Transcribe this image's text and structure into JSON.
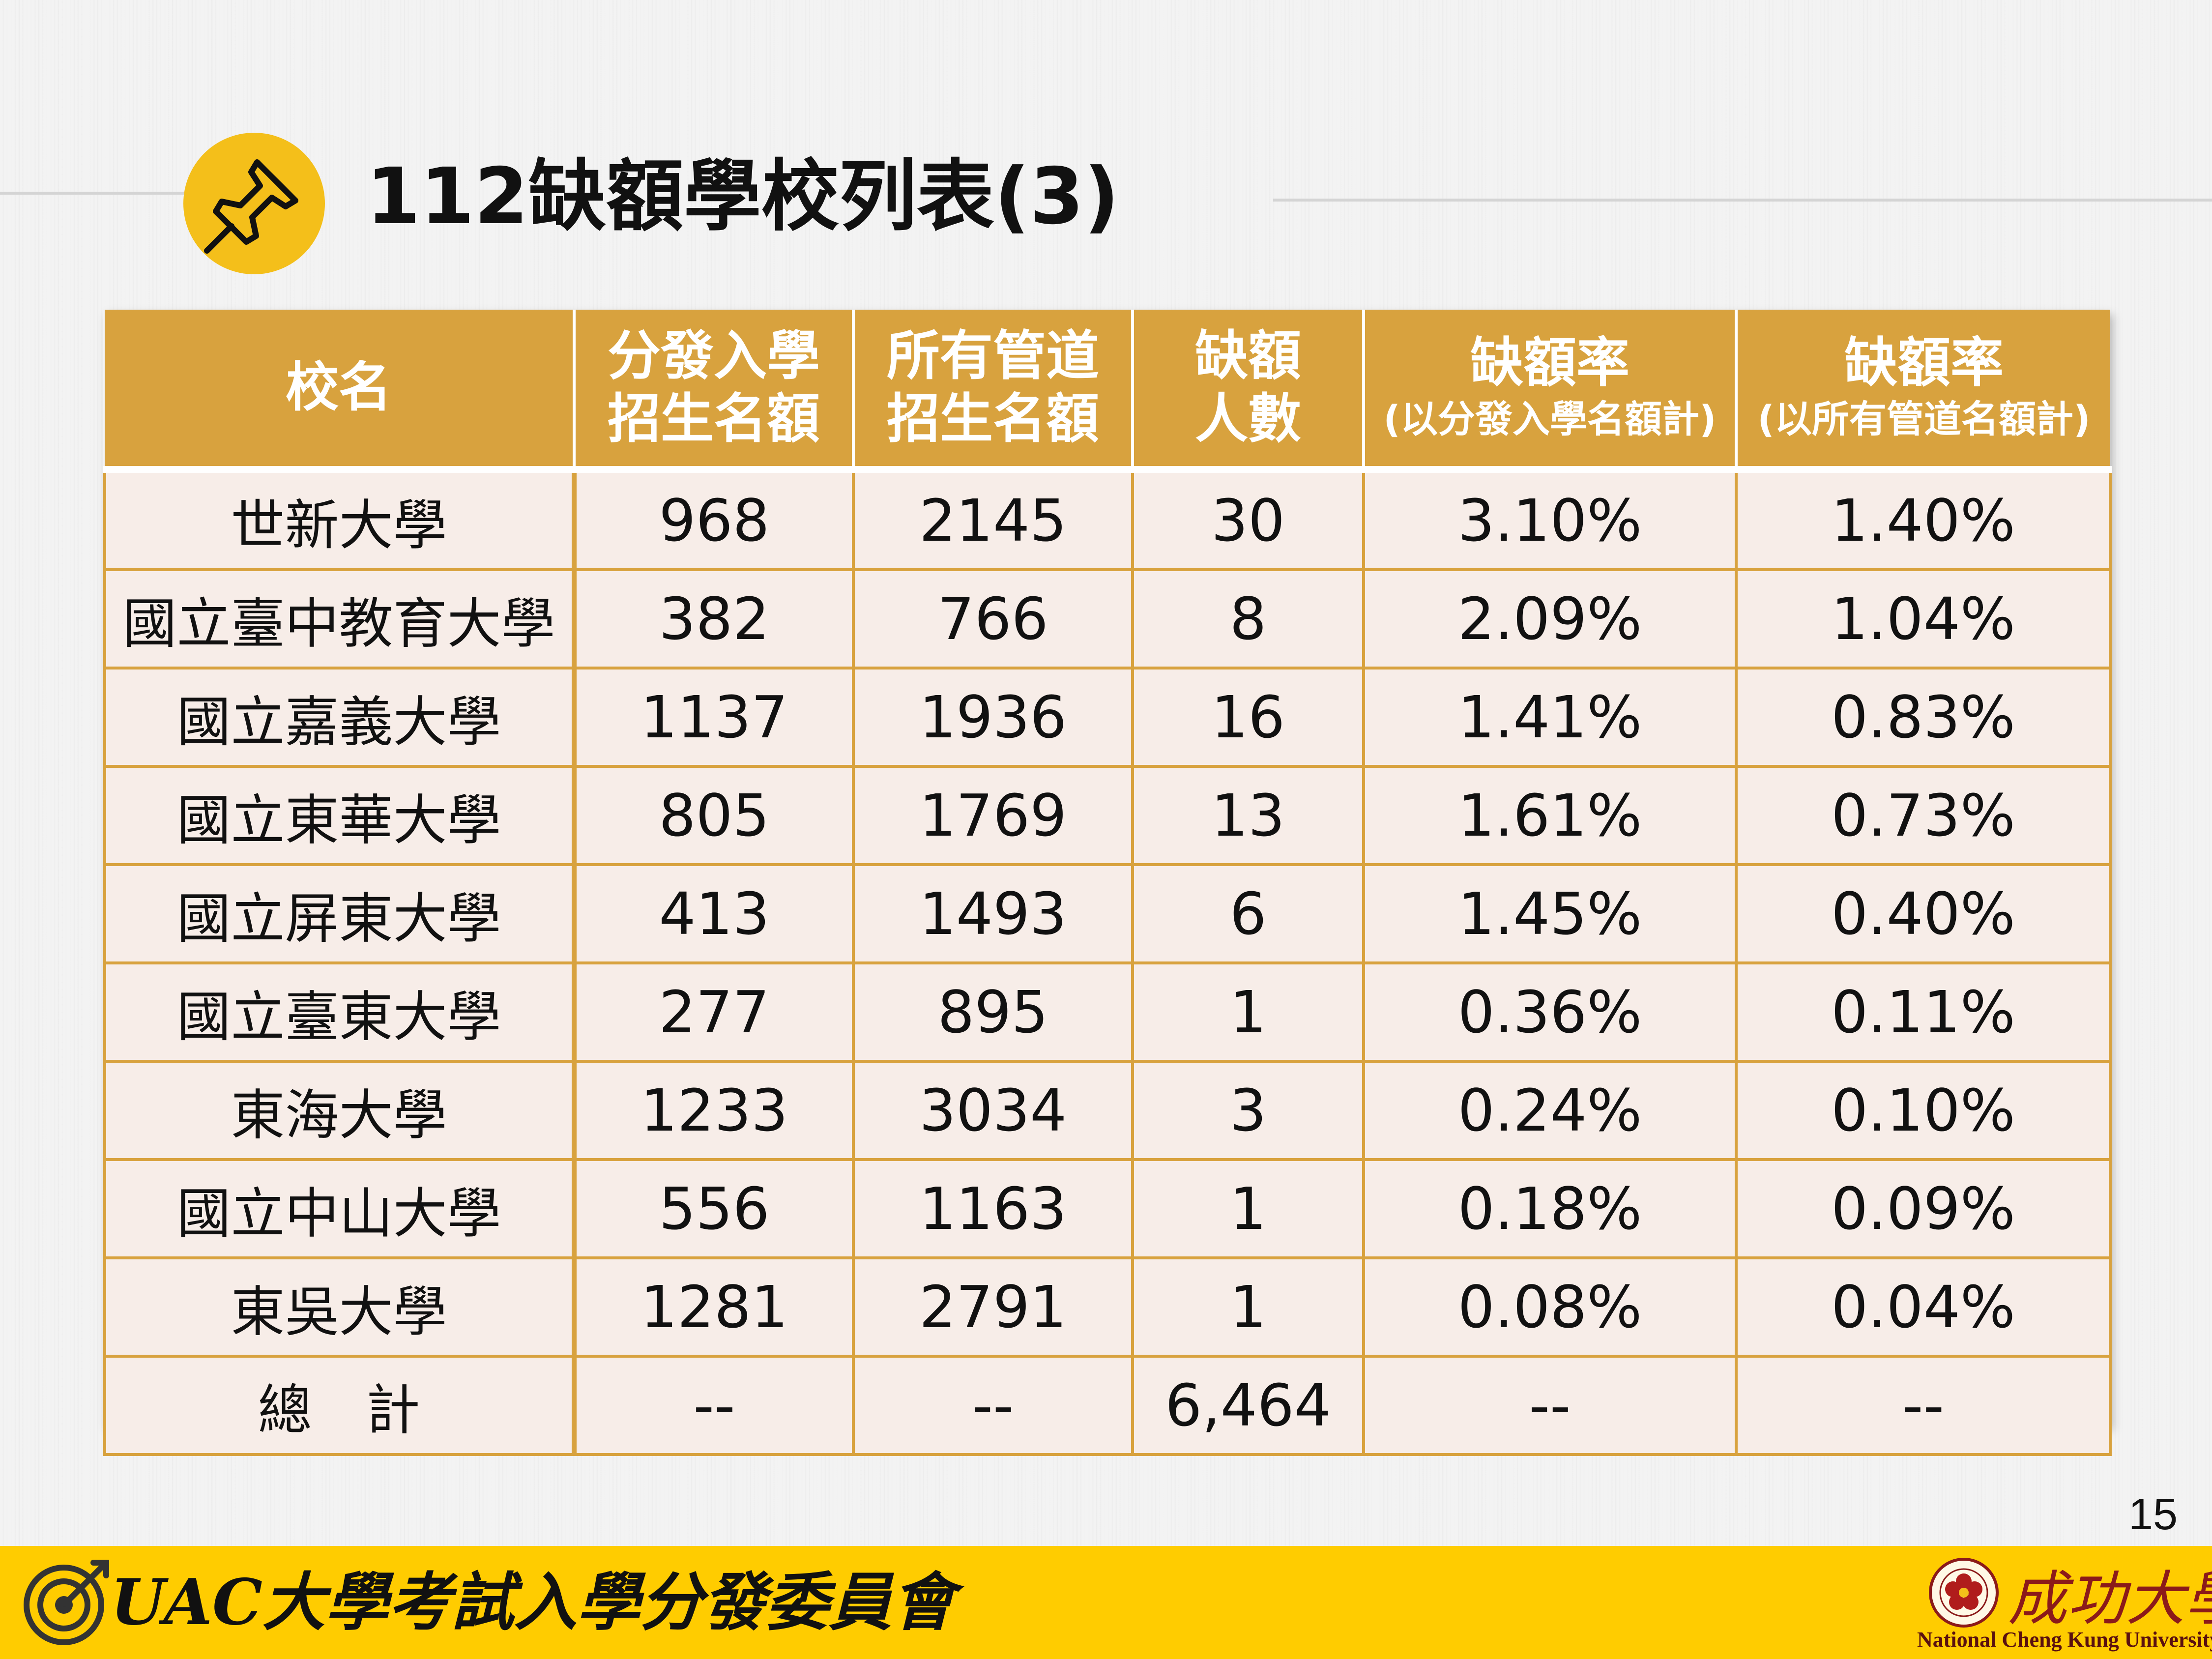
{
  "title": "112缺額學校列表(3)",
  "table": {
    "headers": [
      {
        "line1": "校名",
        "line2": "",
        "sub": ""
      },
      {
        "line1": "分發入學",
        "line2": "招生名額",
        "sub": ""
      },
      {
        "line1": "所有管道",
        "line2": "招生名額",
        "sub": ""
      },
      {
        "line1": "缺額",
        "line2": "人數",
        "sub": ""
      },
      {
        "line1": "缺額率",
        "line2": "",
        "sub": "(以分發入學名額計)"
      },
      {
        "line1": "缺額率",
        "line2": "",
        "sub": "(以所有管道名額計)"
      }
    ],
    "rows": [
      [
        "世新大學",
        "968",
        "2145",
        "30",
        "3.10%",
        "1.40%"
      ],
      [
        "國立臺中教育大學",
        "382",
        "766",
        "8",
        "2.09%",
        "1.04%"
      ],
      [
        "國立嘉義大學",
        "1137",
        "1936",
        "16",
        "1.41%",
        "0.83%"
      ],
      [
        "國立東華大學",
        "805",
        "1769",
        "13",
        "1.61%",
        "0.73%"
      ],
      [
        "國立屏東大學",
        "413",
        "1493",
        "6",
        "1.45%",
        "0.40%"
      ],
      [
        "國立臺東大學",
        "277",
        "895",
        "1",
        "0.36%",
        "0.11%"
      ],
      [
        "東海大學",
        "1233",
        "3034",
        "3",
        "0.24%",
        "0.10%"
      ],
      [
        "國立中山大學",
        "556",
        "1163",
        "1",
        "0.18%",
        "0.09%"
      ],
      [
        "東吳大學",
        "1281",
        "2791",
        "1",
        "0.08%",
        "0.04%"
      ],
      [
        "總　計",
        "--",
        "--",
        "6,464",
        "--",
        "--"
      ]
    ]
  },
  "page_number": "15",
  "footer": {
    "title": "UAC大學考試入學分發委員會",
    "logo_text_zh": "成功大學",
    "logo_text_en": "National Cheng Kung University"
  },
  "colors": {
    "header_gold": "#d8a23e",
    "row_bg": "#f7ede8",
    "footer_yellow": "#ffcc00",
    "badge_yellow": "#f4bf1a"
  },
  "icons": [
    "pushpin-icon",
    "target-arrow-icon",
    "ncku-seal-icon"
  ]
}
